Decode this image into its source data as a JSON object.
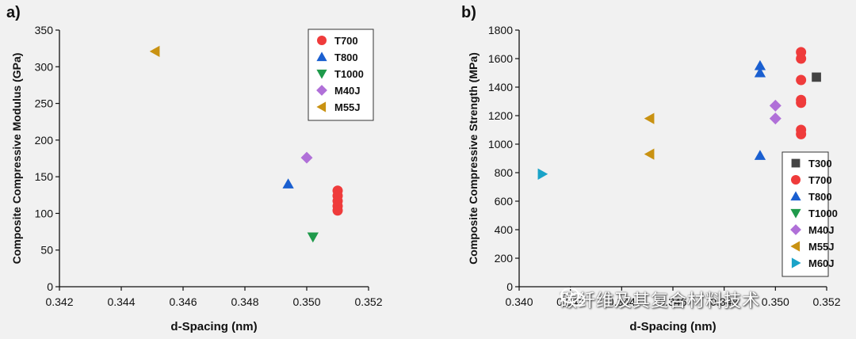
{
  "chart_data": [
    {
      "type": "scatter",
      "panel_label": "a)",
      "xlabel": "d-Spacing (nm)",
      "ylabel": "Composite Compressive Modulus (GPa)",
      "xlim": [
        0.342,
        0.352
      ],
      "ylim": [
        0,
        350
      ],
      "xticks": [
        "0.342",
        "0.344",
        "0.346",
        "0.348",
        "0.350",
        "0.352"
      ],
      "yticks": [
        "0",
        "50",
        "100",
        "150",
        "200",
        "250",
        "300",
        "350"
      ],
      "xtick_values": [
        0.342,
        0.344,
        0.346,
        0.348,
        0.35,
        0.352
      ],
      "ytick_values": [
        0,
        50,
        100,
        150,
        200,
        250,
        300,
        350
      ],
      "legend_position": "top-right",
      "series": [
        {
          "name": "T700",
          "marker": "circle",
          "color": "#ef3b3b",
          "points": [
            [
              0.351,
              131
            ],
            [
              0.351,
              124
            ],
            [
              0.351,
              117
            ],
            [
              0.351,
              110
            ],
            [
              0.351,
              104
            ]
          ]
        },
        {
          "name": "T800",
          "marker": "triangle-up",
          "color": "#1a5fd0",
          "points": [
            [
              0.3494,
              140
            ]
          ]
        },
        {
          "name": "T1000",
          "marker": "triangle-down",
          "color": "#1f9a4b",
          "points": [
            [
              0.3502,
              68
            ]
          ]
        },
        {
          "name": "M40J",
          "marker": "diamond",
          "color": "#b070d8",
          "points": [
            [
              0.35,
              176
            ]
          ]
        },
        {
          "name": "M55J",
          "marker": "triangle-left",
          "color": "#c99212",
          "points": [
            [
              0.3451,
              321
            ]
          ]
        }
      ]
    },
    {
      "type": "scatter",
      "panel_label": "b)",
      "xlabel": "d-Spacing (nm)",
      "ylabel": "Composite Compressive Strength (MPa)",
      "xlim": [
        0.34,
        0.352
      ],
      "ylim": [
        0,
        1800
      ],
      "xticks": [
        "0.340",
        "0.342",
        "0.344",
        "0.346",
        "0.348",
        "0.350",
        "0.352"
      ],
      "yticks": [
        "0",
        "200",
        "400",
        "600",
        "800",
        "1000",
        "1200",
        "1400",
        "1600",
        "1800"
      ],
      "xtick_values": [
        0.34,
        0.342,
        0.344,
        0.346,
        0.348,
        0.35,
        0.352
      ],
      "ytick_values": [
        0,
        200,
        400,
        600,
        800,
        1000,
        1200,
        1400,
        1600,
        1800
      ],
      "legend_position": "bottom-right",
      "series": [
        {
          "name": "T300",
          "marker": "square",
          "color": "#444444",
          "points": [
            [
              0.3516,
              1470
            ]
          ]
        },
        {
          "name": "T700",
          "marker": "circle",
          "color": "#ef3b3b",
          "points": [
            [
              0.351,
              1645
            ],
            [
              0.351,
              1600
            ],
            [
              0.351,
              1450
            ],
            [
              0.351,
              1310
            ],
            [
              0.351,
              1290
            ],
            [
              0.351,
              1100
            ],
            [
              0.351,
              1070
            ]
          ]
        },
        {
          "name": "T800",
          "marker": "triangle-up",
          "color": "#1a5fd0",
          "points": [
            [
              0.3494,
              1550
            ],
            [
              0.3494,
              1500
            ],
            [
              0.3494,
              920
            ]
          ]
        },
        {
          "name": "T1000",
          "marker": "triangle-down",
          "color": "#1f9a4b",
          "points": []
        },
        {
          "name": "M40J",
          "marker": "diamond",
          "color": "#b070d8",
          "points": [
            [
              0.35,
              1270
            ],
            [
              0.35,
              1180
            ]
          ]
        },
        {
          "name": "M55J",
          "marker": "triangle-left",
          "color": "#c99212",
          "points": [
            [
              0.3451,
              1180
            ],
            [
              0.3451,
              930
            ]
          ]
        },
        {
          "name": "M60J",
          "marker": "triangle-right",
          "color": "#1aa3c8",
          "points": [
            [
              0.3409,
              790
            ]
          ]
        }
      ]
    }
  ],
  "watermark": {
    "text": "碳纤维及其复合材料技术",
    "icon": "wechat-icon"
  }
}
